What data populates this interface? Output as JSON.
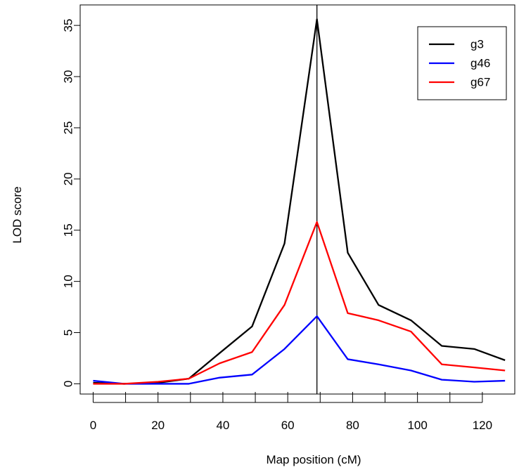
{
  "chart_data": {
    "type": "line",
    "title": "",
    "xlabel": "Map position (cM)",
    "ylabel": "LOD score",
    "xlim": [
      -4,
      130
    ],
    "ylim": [
      -1,
      37
    ],
    "xticks": [
      0,
      20,
      40,
      60,
      80,
      100,
      120
    ],
    "yticks": [
      0,
      5,
      10,
      15,
      20,
      25,
      30,
      35
    ],
    "x_minor_ticks": [
      0,
      10,
      20,
      30,
      40,
      50,
      60,
      70,
      80,
      90,
      100,
      110,
      120
    ],
    "vertical_line_x": 69,
    "grid": false,
    "legend_position": "top-right",
    "x": [
      0,
      9.5,
      20,
      29.5,
      39,
      49,
      59,
      69,
      78.5,
      88,
      98,
      107.5,
      117.5,
      127
    ],
    "series": [
      {
        "name": "g3",
        "color": "#000000",
        "values": [
          0.1,
          0.0,
          0.1,
          0.5,
          3.0,
          5.6,
          13.7,
          35.6,
          12.8,
          7.7,
          6.2,
          3.7,
          3.4,
          2.3
        ]
      },
      {
        "name": "g46",
        "color": "#0000FF",
        "values": [
          0.3,
          0.0,
          0.0,
          0.0,
          0.6,
          0.9,
          3.4,
          6.6,
          2.4,
          1.9,
          1.3,
          0.4,
          0.2,
          0.3
        ]
      },
      {
        "name": "g67",
        "color": "#FF0000",
        "values": [
          0.0,
          0.0,
          0.2,
          0.5,
          2.0,
          3.1,
          7.7,
          15.8,
          6.9,
          6.2,
          5.1,
          1.9,
          1.6,
          1.3
        ]
      }
    ]
  }
}
